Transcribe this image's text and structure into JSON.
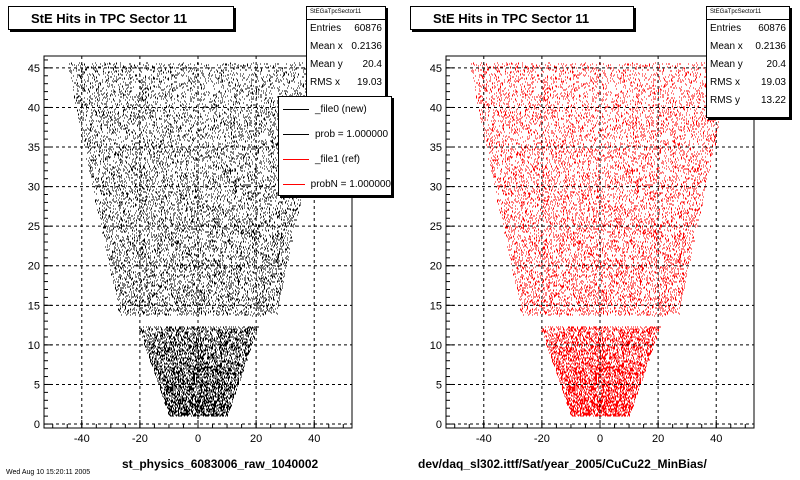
{
  "chart_data": [
    {
      "type": "scatter",
      "title": "StE Hits in TPC Sector 11",
      "xlabel": "st_physics_6083006_raw_1040002",
      "ylabel": "",
      "xlim": [
        -53,
        53
      ],
      "ylim": [
        -0.5,
        46.5
      ],
      "xticks": [
        "-40",
        "-20",
        "0",
        "20",
        "40"
      ],
      "yticks": [
        "0",
        "5",
        "10",
        "15",
        "20",
        "25",
        "30",
        "35",
        "40",
        "45"
      ],
      "grid": true,
      "marker_color": "#000000",
      "stats": {
        "name": "StEGaTpcSector11",
        "rows": [
          {
            "label": "Entries",
            "value": "60876"
          },
          {
            "label": "Mean x",
            "value": "0.2136"
          },
          {
            "label": "Mean y",
            "value": "20.4"
          },
          {
            "label": "RMS x",
            "value": "19.03"
          }
        ]
      },
      "legend": {
        "placement": "top-right",
        "entries": [
          {
            "label": "_file0 (new)",
            "color": "#000000"
          },
          {
            "label": "prob = 1.000000",
            "color": "#000000"
          },
          {
            "label": "_file1 (ref)",
            "color": "#ff0000"
          },
          {
            "label": "probN = 1.000000",
            "color": "#ff0000"
          }
        ]
      }
    },
    {
      "type": "scatter",
      "title": "StE Hits in TPC Sector 11",
      "xlabel": "dev/daq_sl302.ittf/Sat/year_2005/CuCu22_MinBias/",
      "ylabel": "",
      "xlim": [
        -53,
        53
      ],
      "ylim": [
        -0.5,
        46.5
      ],
      "xticks": [
        "-40",
        "-20",
        "0",
        "20",
        "40"
      ],
      "yticks": [
        "0",
        "5",
        "10",
        "15",
        "20",
        "25",
        "30",
        "35",
        "40",
        "45"
      ],
      "grid": true,
      "marker_color": "#ff0000",
      "stats": {
        "name": "StEGaTpcSector11",
        "rows": [
          {
            "label": "Entries",
            "value": "60876"
          },
          {
            "label": "Mean x",
            "value": "0.2136"
          },
          {
            "label": "Mean y",
            "value": "20.4"
          },
          {
            "label": "RMS x",
            "value": "19.03"
          },
          {
            "label": "RMS y",
            "value": "13.22"
          }
        ]
      }
    }
  ],
  "footer": "Wed Aug 10 15:20:11 2005"
}
